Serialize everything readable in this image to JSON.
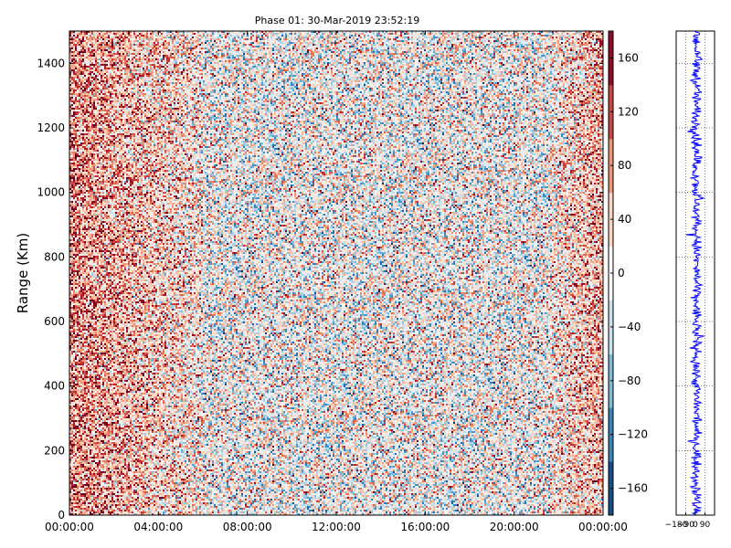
{
  "chart_data": [
    {
      "type": "heatmap",
      "title": "Phase 01: 30-Mar-2019 23:52:19",
      "xlabel": "",
      "ylabel": "Range (Km)",
      "x_ticks": [
        "00:00:00",
        "04:00:00",
        "08:00:00",
        "12:00:00",
        "16:00:00",
        "20:00:00",
        "00:00:00"
      ],
      "y_ticks": [
        0,
        200,
        400,
        600,
        800,
        1000,
        1200,
        1400
      ],
      "ylim": [
        0,
        1500
      ],
      "grid": false,
      "colorbar": {
        "colormap": "RdBu_r",
        "range": [
          -180,
          180
        ],
        "ticks": [
          -160,
          -120,
          -80,
          -40,
          0,
          40,
          80,
          120,
          160
        ],
        "tick_labels": [
          "−160",
          "−120",
          "−80",
          "−40",
          "0",
          "40",
          "80",
          "120",
          "160"
        ]
      },
      "description_of_field": "phase values in degrees, noisy across all times; time columns near 00:00‐06:00 and 22:00‐24:00 are biased positive (light red), middle hours are mixed"
    },
    {
      "type": "line",
      "series": [
        {
          "color": "#0000ff"
        }
      ],
      "x_ticks": [
        "−180",
        "−90",
        "0",
        "90"
      ],
      "xlim": [
        -180,
        180
      ],
      "ylim": [
        0,
        1500
      ],
      "grid": "dotted"
    }
  ]
}
